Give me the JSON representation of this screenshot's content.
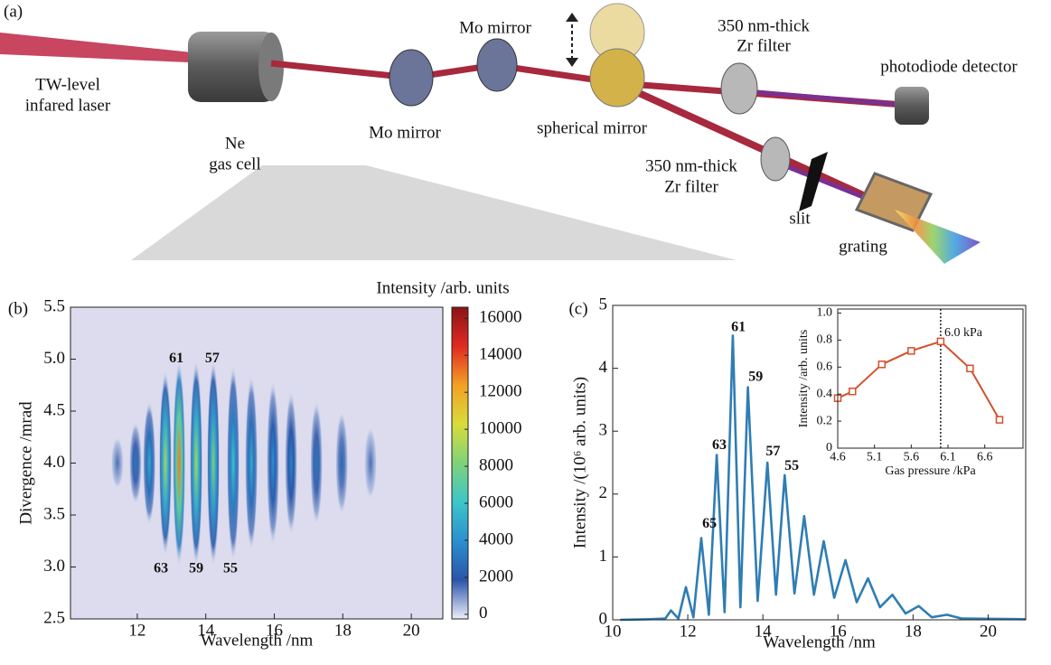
{
  "panel_a": {
    "label": "(a)",
    "labels": [
      "TW-level",
      "infared laser",
      "Ne",
      "gas cell",
      "Mo mirror",
      "Mo mirror",
      "spherical mirror",
      "350 nm-thick",
      "Zr filter",
      "photodiode detector",
      "350 nm-thick",
      "Zr filter",
      "slit",
      "grating"
    ]
  },
  "chart_data": [
    {
      "type": "heatmap",
      "panel_label": "(b)",
      "xlabel": "Wavelength /nm",
      "ylabel": "Divergence /mrad",
      "xlim": [
        10.05,
        20.92
      ],
      "xticks": [
        12,
        14,
        16,
        18,
        20
      ],
      "ylim": [
        2.5,
        5.5
      ],
      "yticks": [
        2.5,
        {
          "value": 3,
          "label": "3.0"
        },
        3.5,
        {
          "value": 4,
          "label": "4.0"
        },
        4.5,
        {
          "value": 5,
          "label": "5.0"
        },
        5.5
      ],
      "background": "#dcdcee",
      "colormap": [
        "#eeeefa",
        "#2a55a8",
        "#2b8fd0",
        "#3cc6c8",
        "#7fd27a",
        "#d8dc3a",
        "#f3a024",
        "#e02a22",
        "#8a1414"
      ],
      "y_center": 4.0,
      "x": [
        11.42,
        11.95,
        12.35,
        12.82,
        13.22,
        13.72,
        14.22,
        14.8,
        15.33,
        15.96,
        16.49,
        17.23,
        17.97,
        18.81
      ],
      "values": [
        1500,
        3000,
        5000,
        9000,
        13000,
        9000,
        8000,
        6000,
        5000,
        4000,
        3500,
        3000,
        2500,
        1500
      ],
      "spread": [
        0.25,
        0.4,
        0.6,
        0.9,
        1.0,
        1.0,
        1.0,
        0.95,
        0.85,
        0.8,
        0.7,
        0.6,
        0.5,
        0.35
      ],
      "colorbar": {
        "title": "Intensity /arb. units",
        "lim": [
          -250,
          16600
        ],
        "ticks": [
          0,
          2000,
          4000,
          6000,
          8000,
          10000,
          12000,
          14000,
          16000
        ]
      },
      "annotations": [
        {
          "text": "61",
          "x": 13.14,
          "y": 5.0
        },
        {
          "text": "57",
          "x": 14.19,
          "y": 5.0
        },
        {
          "text": "63",
          "x": 12.69,
          "y": 2.98
        },
        {
          "text": "59",
          "x": 13.72,
          "y": 2.98
        },
        {
          "text": "55",
          "x": 14.72,
          "y": 2.98
        }
      ]
    },
    {
      "type": "line",
      "panel_label": "(c)",
      "xlabel": "Wavelength /nm",
      "ylabel": "Intensity /(10⁶ arb. units)",
      "xlim": [
        10,
        21
      ],
      "xticks": [
        10,
        12,
        14,
        16,
        18,
        20
      ],
      "ylim": [
        0,
        5
      ],
      "yticks": [
        0,
        1,
        2,
        3,
        4,
        5
      ],
      "color": "#2f7db4",
      "x": [
        10.2,
        11.0,
        11.4,
        11.55,
        11.75,
        11.95,
        12.15,
        12.36,
        12.56,
        12.77,
        12.98,
        13.2,
        13.4,
        13.6,
        13.86,
        14.12,
        14.35,
        14.58,
        14.84,
        15.1,
        15.36,
        15.62,
        15.9,
        16.2,
        16.5,
        16.8,
        17.12,
        17.45,
        17.8,
        18.15,
        18.5,
        18.9,
        19.3,
        21.0
      ],
      "values": [
        0,
        0.01,
        0.02,
        0.15,
        0.02,
        0.52,
        0.04,
        1.3,
        0.08,
        2.62,
        0.12,
        4.52,
        0.2,
        3.7,
        0.3,
        2.5,
        0.4,
        2.3,
        0.42,
        1.65,
        0.4,
        1.25,
        0.35,
        0.95,
        0.28,
        0.66,
        0.2,
        0.4,
        0.1,
        0.22,
        0.04,
        0.08,
        0.02,
        0.01
      ],
      "annotations": [
        {
          "text": "65",
          "x": 12.58,
          "y": 1.52
        },
        {
          "text": "63",
          "x": 12.84,
          "y": 2.77
        },
        {
          "text": "61",
          "x": 13.35,
          "y": 4.64
        },
        {
          "text": "59",
          "x": 13.81,
          "y": 3.85
        },
        {
          "text": "57",
          "x": 14.27,
          "y": 2.67
        },
        {
          "text": "55",
          "x": 14.77,
          "y": 2.44
        }
      ]
    },
    {
      "type": "line",
      "xlabel": "Gas pressure /kPa",
      "ylabel": "Intensity /arb. units",
      "xlim": [
        4.6,
        7.12
      ],
      "xticks": [
        4.6,
        5.1,
        5.6,
        6.1,
        6.6
      ],
      "ylim": [
        0,
        1.03
      ],
      "yticks": [
        0,
        0.2,
        0.4,
        0.6,
        0.8,
        {
          "value": 1,
          "label": "1.0"
        }
      ],
      "color": "#d2502c",
      "markers": true,
      "vline": 6.0,
      "x": [
        4.6,
        4.8,
        5.2,
        5.6,
        6.0,
        6.4,
        6.8
      ],
      "values": [
        0.37,
        0.42,
        0.62,
        0.72,
        0.79,
        0.59,
        0.21
      ],
      "annotations": [
        {
          "text": "6.0 kPa",
          "x": 6.05,
          "y": 0.85
        }
      ]
    }
  ]
}
